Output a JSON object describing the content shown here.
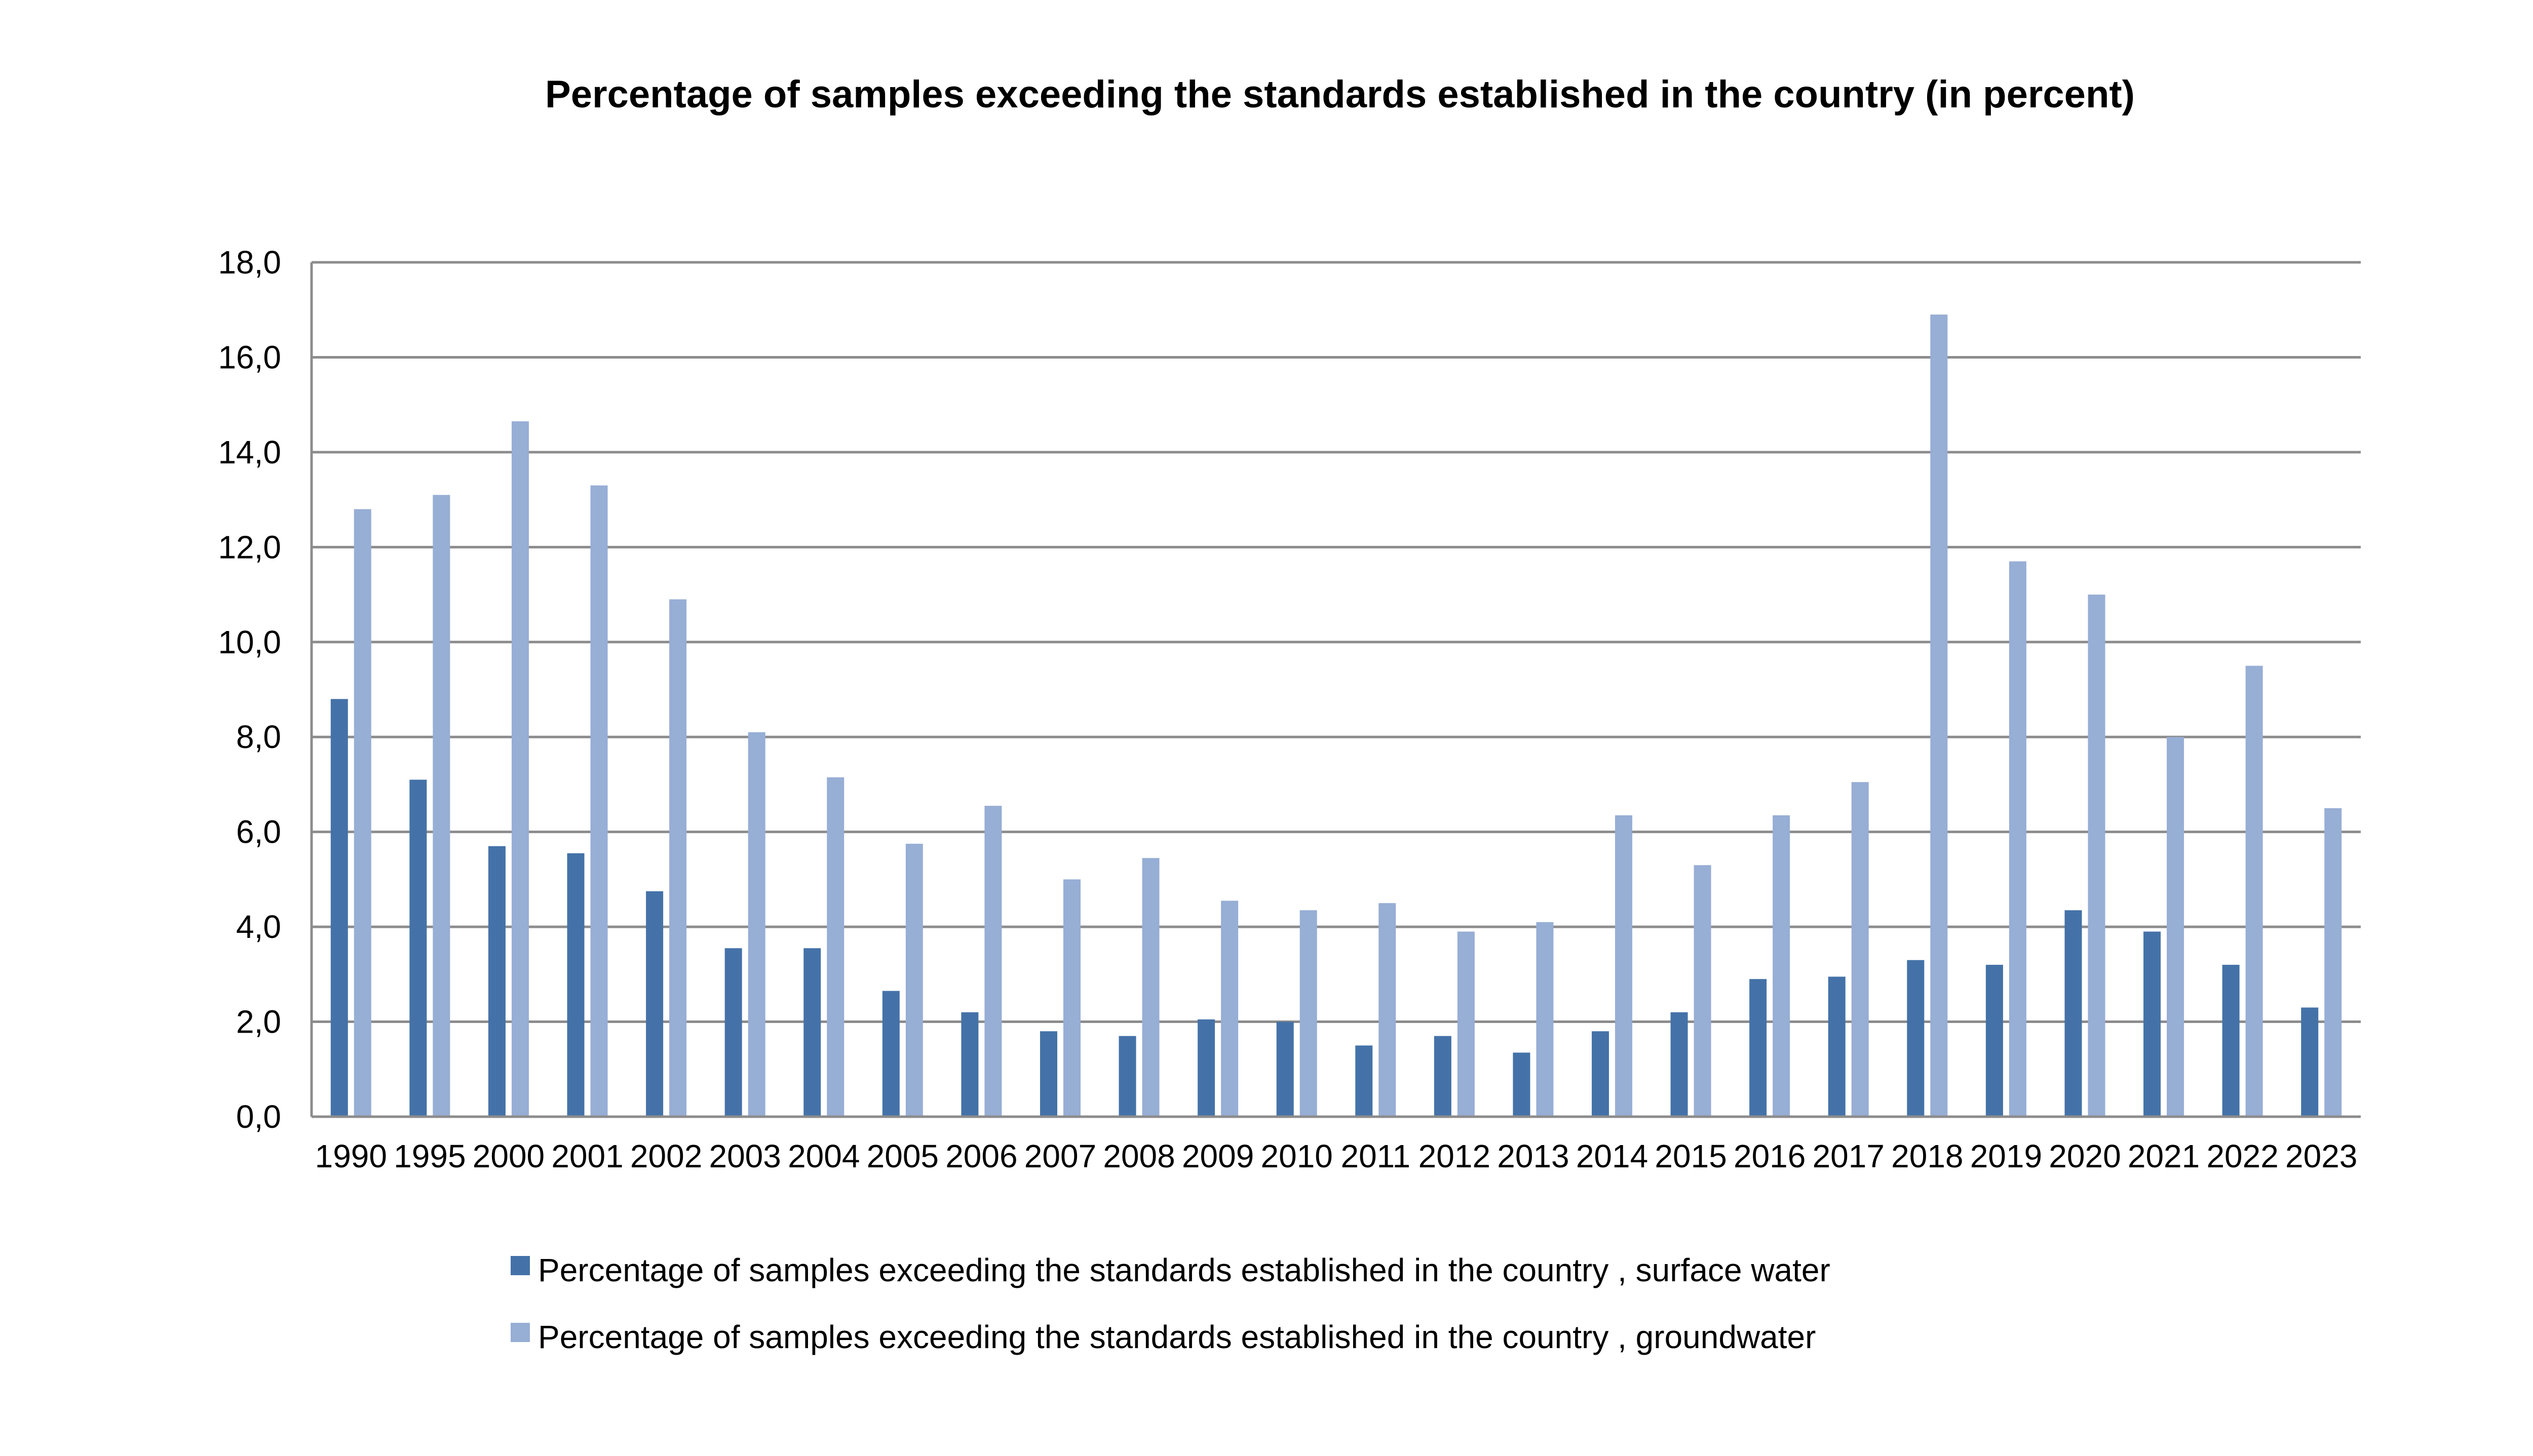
{
  "chart_data": {
    "type": "bar",
    "title": "Percentage of samples exceeding the standards established in the country (in percent)",
    "xlabel": "",
    "ylabel": "",
    "ylim": [
      0,
      18
    ],
    "yticks": [
      "0,0",
      "2,0",
      "4,0",
      "6,0",
      "8,0",
      "10,0",
      "12,0",
      "14,0",
      "16,0",
      "18,0"
    ],
    "grid": true,
    "legend_position": "bottom",
    "categories": [
      "1990",
      "1995",
      "2000",
      "2001",
      "2002",
      "2003",
      "2004",
      "2005",
      "2006",
      "2007",
      "2008",
      "2009",
      "2010",
      "2011",
      "2012",
      "2013",
      "2014",
      "2015",
      "2016",
      "2017",
      "2018",
      "2019",
      "2020",
      "2021",
      "2022",
      "2023"
    ],
    "series": [
      {
        "name": "Percentage of samples exceeding the standards established in the country , surface water",
        "color": "#4472a8",
        "values": [
          8.8,
          7.1,
          5.7,
          5.55,
          4.75,
          3.55,
          3.55,
          2.65,
          2.2,
          1.8,
          1.7,
          2.05,
          2.0,
          1.5,
          1.7,
          1.35,
          1.8,
          2.2,
          2.9,
          2.95,
          3.3,
          3.2,
          4.35,
          3.9,
          3.2,
          2.3
        ]
      },
      {
        "name": "Percentage of samples exceeding the standards established in the country , groundwater",
        "color": "#97aed5",
        "values": [
          12.8,
          13.1,
          14.65,
          13.3,
          10.9,
          8.1,
          7.15,
          5.75,
          6.55,
          5.0,
          5.45,
          4.55,
          4.35,
          4.5,
          3.9,
          4.1,
          6.35,
          5.3,
          6.35,
          7.05,
          16.9,
          11.7,
          11.0,
          8.0,
          9.5,
          6.5
        ]
      }
    ]
  }
}
